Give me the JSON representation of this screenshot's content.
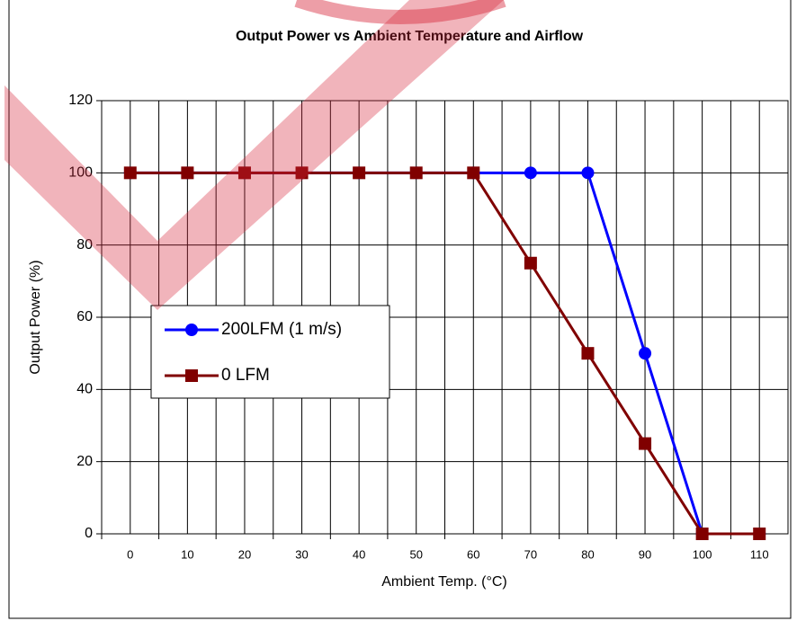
{
  "chart_data": {
    "type": "line",
    "title": "Output Power vs Ambient Temperature and Airflow",
    "x_label": "Ambient Temp. (°C)",
    "y_label": "Output Power (%)",
    "x": [
      0,
      10,
      20,
      30,
      40,
      50,
      60,
      70,
      80,
      90,
      100,
      110
    ],
    "series": [
      {
        "name": "200LFM (1 m/s)",
        "color": "#0000ff",
        "marker": "circle",
        "values": [
          100,
          100,
          100,
          100,
          100,
          100,
          100,
          100,
          100,
          50,
          0,
          0
        ]
      },
      {
        "name": "0 LFM",
        "color": "#800000",
        "marker": "square",
        "values": [
          100,
          100,
          100,
          100,
          100,
          100,
          100,
          75,
          50,
          25,
          0,
          0
        ]
      }
    ],
    "xlim": [
      -5,
      115
    ],
    "xticks": [
      0,
      10,
      20,
      30,
      40,
      50,
      60,
      70,
      80,
      90,
      100,
      110
    ],
    "ylim": [
      0,
      120
    ],
    "yticks": [
      0,
      20,
      40,
      60,
      80,
      100,
      120
    ],
    "grid": true
  }
}
